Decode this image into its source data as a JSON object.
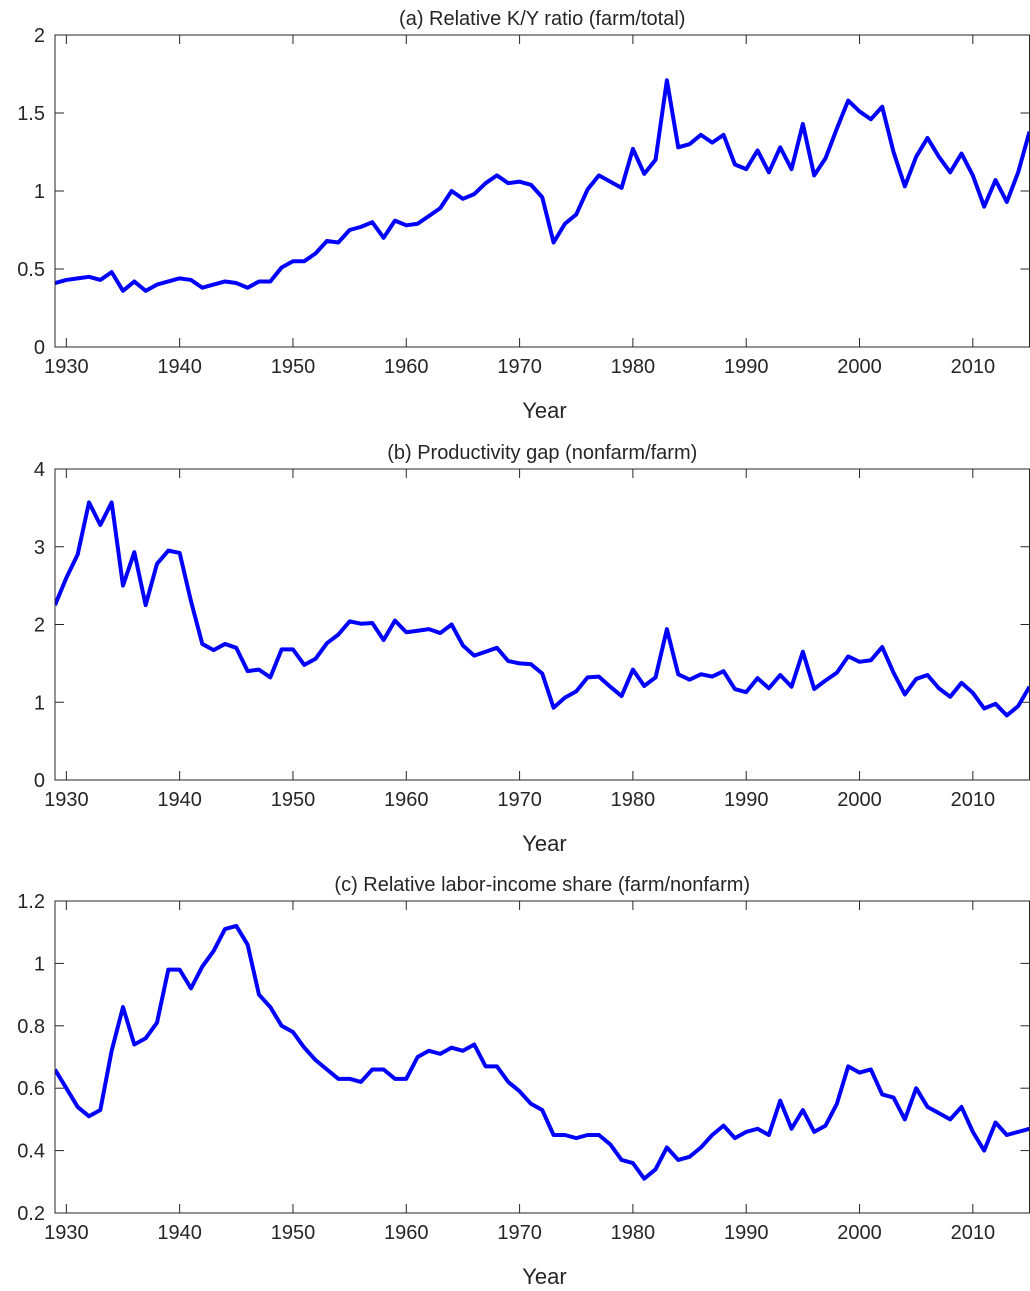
{
  "chart_data": [
    {
      "type": "line",
      "title": "(a) Relative K/Y ratio (farm/total)",
      "xlabel": "Year",
      "x": [
        1929,
        1930,
        1931,
        1932,
        1933,
        1934,
        1935,
        1936,
        1937,
        1938,
        1939,
        1940,
        1941,
        1942,
        1943,
        1944,
        1945,
        1946,
        1947,
        1948,
        1949,
        1950,
        1951,
        1952,
        1953,
        1954,
        1955,
        1956,
        1957,
        1958,
        1959,
        1960,
        1961,
        1962,
        1963,
        1964,
        1965,
        1966,
        1967,
        1968,
        1969,
        1970,
        1971,
        1972,
        1973,
        1974,
        1975,
        1976,
        1977,
        1978,
        1979,
        1980,
        1981,
        1982,
        1983,
        1984,
        1985,
        1986,
        1987,
        1988,
        1989,
        1990,
        1991,
        1992,
        1993,
        1994,
        1995,
        1996,
        1997,
        1998,
        1999,
        2000,
        2001,
        2002,
        2003,
        2004,
        2005,
        2006,
        2007,
        2008,
        2009,
        2010,
        2011,
        2012,
        2013,
        2014,
        2015
      ],
      "series": [
        {
          "color": "#0000ff",
          "values": [
            0.41,
            0.43,
            0.44,
            0.45,
            0.43,
            0.48,
            0.36,
            0.42,
            0.36,
            0.4,
            0.42,
            0.44,
            0.43,
            0.38,
            0.4,
            0.42,
            0.41,
            0.38,
            0.42,
            0.42,
            0.51,
            0.55,
            0.55,
            0.6,
            0.68,
            0.67,
            0.75,
            0.77,
            0.8,
            0.7,
            0.81,
            0.78,
            0.79,
            0.84,
            0.89,
            1.0,
            0.95,
            0.98,
            1.05,
            1.1,
            1.05,
            1.06,
            1.04,
            0.96,
            0.67,
            0.79,
            0.85,
            1.01,
            1.1,
            1.06,
            1.02,
            1.27,
            1.11,
            1.2,
            1.71,
            1.28,
            1.3,
            1.36,
            1.31,
            1.36,
            1.17,
            1.14,
            1.26,
            1.12,
            1.28,
            1.14,
            1.43,
            1.1,
            1.21,
            1.4,
            1.58,
            1.51,
            1.46,
            1.54,
            1.25,
            1.03,
            1.22,
            1.34,
            1.22,
            1.12,
            1.24,
            1.1,
            0.9,
            1.07,
            0.93,
            1.12,
            1.38
          ]
        }
      ],
      "xlim": [
        1929,
        2015
      ],
      "xticks": [
        1930,
        1940,
        1950,
        1960,
        1970,
        1980,
        1990,
        2000,
        2010
      ],
      "ylim": [
        0,
        2
      ],
      "yticks": [
        0,
        0.5,
        1,
        1.5,
        2
      ]
    },
    {
      "type": "line",
      "title": "(b) Productivity gap (nonfarm/farm)",
      "xlabel": "Year",
      "x": [
        1929,
        1930,
        1931,
        1932,
        1933,
        1934,
        1935,
        1936,
        1937,
        1938,
        1939,
        1940,
        1941,
        1942,
        1943,
        1944,
        1945,
        1946,
        1947,
        1948,
        1949,
        1950,
        1951,
        1952,
        1953,
        1954,
        1955,
        1956,
        1957,
        1958,
        1959,
        1960,
        1961,
        1962,
        1963,
        1964,
        1965,
        1966,
        1967,
        1968,
        1969,
        1970,
        1971,
        1972,
        1973,
        1974,
        1975,
        1976,
        1977,
        1978,
        1979,
        1980,
        1981,
        1982,
        1983,
        1984,
        1985,
        1986,
        1987,
        1988,
        1989,
        1990,
        1991,
        1992,
        1993,
        1994,
        1995,
        1996,
        1997,
        1998,
        1999,
        2000,
        2001,
        2002,
        2003,
        2004,
        2005,
        2006,
        2007,
        2008,
        2009,
        2010,
        2011,
        2012,
        2013,
        2014,
        2015
      ],
      "series": [
        {
          "color": "#0000ff",
          "values": [
            2.25,
            2.6,
            2.9,
            3.57,
            3.28,
            3.57,
            2.5,
            2.93,
            2.25,
            2.78,
            2.95,
            2.92,
            2.3,
            1.75,
            1.67,
            1.75,
            1.7,
            1.4,
            1.42,
            1.32,
            1.68,
            1.68,
            1.48,
            1.56,
            1.76,
            1.87,
            2.04,
            2.01,
            2.02,
            1.8,
            2.05,
            1.9,
            1.92,
            1.94,
            1.89,
            2.0,
            1.73,
            1.6,
            1.65,
            1.7,
            1.53,
            1.5,
            1.49,
            1.37,
            0.93,
            1.06,
            1.14,
            1.32,
            1.33,
            1.2,
            1.08,
            1.42,
            1.21,
            1.32,
            1.94,
            1.36,
            1.29,
            1.36,
            1.33,
            1.4,
            1.17,
            1.13,
            1.31,
            1.18,
            1.35,
            1.2,
            1.65,
            1.17,
            1.28,
            1.38,
            1.59,
            1.52,
            1.54,
            1.71,
            1.38,
            1.1,
            1.3,
            1.35,
            1.18,
            1.07,
            1.25,
            1.12,
            0.92,
            0.98,
            0.83,
            0.95,
            1.2
          ]
        }
      ],
      "xlim": [
        1929,
        2015
      ],
      "xticks": [
        1930,
        1940,
        1950,
        1960,
        1970,
        1980,
        1990,
        2000,
        2010
      ],
      "ylim": [
        0,
        4
      ],
      "yticks": [
        0,
        1,
        2,
        3,
        4
      ]
    },
    {
      "type": "line",
      "title": "(c) Relative labor-income share (farm/nonfarm)",
      "xlabel": "Year",
      "x": [
        1929,
        1930,
        1931,
        1932,
        1933,
        1934,
        1935,
        1936,
        1937,
        1938,
        1939,
        1940,
        1941,
        1942,
        1943,
        1944,
        1945,
        1946,
        1947,
        1948,
        1949,
        1950,
        1951,
        1952,
        1953,
        1954,
        1955,
        1956,
        1957,
        1958,
        1959,
        1960,
        1961,
        1962,
        1963,
        1964,
        1965,
        1966,
        1967,
        1968,
        1969,
        1970,
        1971,
        1972,
        1973,
        1974,
        1975,
        1976,
        1977,
        1978,
        1979,
        1980,
        1981,
        1982,
        1983,
        1984,
        1985,
        1986,
        1987,
        1988,
        1989,
        1990,
        1991,
        1992,
        1993,
        1994,
        1995,
        1996,
        1997,
        1998,
        1999,
        2000,
        2001,
        2002,
        2003,
        2004,
        2005,
        2006,
        2007,
        2008,
        2009,
        2010,
        2011,
        2012,
        2013,
        2014,
        2015
      ],
      "series": [
        {
          "color": "#0000ff",
          "values": [
            0.66,
            0.6,
            0.54,
            0.51,
            0.53,
            0.72,
            0.86,
            0.74,
            0.76,
            0.81,
            0.98,
            0.98,
            0.92,
            0.99,
            1.04,
            1.11,
            1.12,
            1.06,
            0.9,
            0.86,
            0.8,
            0.78,
            0.73,
            0.69,
            0.66,
            0.63,
            0.63,
            0.62,
            0.66,
            0.66,
            0.63,
            0.63,
            0.7,
            0.72,
            0.71,
            0.73,
            0.72,
            0.74,
            0.67,
            0.67,
            0.62,
            0.59,
            0.55,
            0.53,
            0.45,
            0.45,
            0.44,
            0.45,
            0.45,
            0.42,
            0.37,
            0.36,
            0.31,
            0.34,
            0.41,
            0.37,
            0.38,
            0.41,
            0.45,
            0.48,
            0.44,
            0.46,
            0.47,
            0.45,
            0.56,
            0.47,
            0.53,
            0.46,
            0.48,
            0.55,
            0.67,
            0.65,
            0.66,
            0.58,
            0.57,
            0.5,
            0.6,
            0.54,
            0.52,
            0.5,
            0.54,
            0.46,
            0.4,
            0.49,
            0.45,
            0.46,
            0.47
          ]
        }
      ],
      "xlim": [
        1929,
        2015
      ],
      "xticks": [
        1930,
        1940,
        1950,
        1960,
        1970,
        1980,
        1990,
        2000,
        2010
      ],
      "ylim": [
        0.2,
        1.2
      ],
      "yticks": [
        0.2,
        0.4,
        0.6,
        0.8,
        1,
        1.2
      ]
    }
  ]
}
